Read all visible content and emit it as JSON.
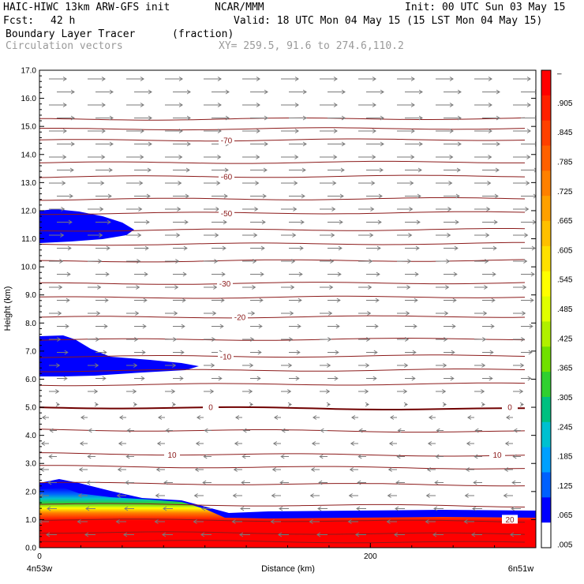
{
  "header": {
    "model": "HAIC-HIWC 13km ARW-GFS init",
    "org": "NCAR/MMM",
    "init": "Init: 00 UTC Sun 03 May 15",
    "fcst_label": "Fcst:",
    "fcst_value": "42 h",
    "valid": "Valid: 18 UTC Mon 04 May 15 (15 LST Mon 04 May 15)",
    "field": "Boundary Layer Tracer",
    "field_unit": "(fraction)",
    "vectors": "Circulation vectors",
    "xy": "XY= 259.5, 91.6 to 274.6,110.2"
  },
  "chart_data": {
    "type": "cross-section",
    "title": "Boundary Layer Tracer",
    "ylabel": "Height (km)",
    "xlabel": "Distance (km)",
    "ylim": [
      0,
      17
    ],
    "xlim": [
      0,
      300
    ],
    "yticks": [
      "0.0",
      "1.0",
      "2.0",
      "3.0",
      "4.0",
      "5.0",
      "6.0",
      "7.0",
      "8.0",
      "9.0",
      "10.0",
      "11.0",
      "12.0",
      "13.0",
      "14.0",
      "15.0",
      "16.0",
      "17.0"
    ],
    "xticks": [
      {
        "x": 0,
        "label": "0"
      },
      {
        "x": 200,
        "label": "200"
      }
    ],
    "x_endpoints": {
      "left": "4n53w",
      "right": "6n51w"
    },
    "colorbar": {
      "labels": [
        "–",
        ".905",
        ".845",
        ".785",
        ".725",
        ".665",
        ".605",
        ".545",
        ".485",
        ".425",
        ".365",
        ".305",
        ".245",
        ".185",
        ".125",
        ".065",
        ".005"
      ],
      "colors": [
        "#ff0000",
        "#ff2000",
        "#ff4000",
        "#ff6000",
        "#ff8000",
        "#ffa000",
        "#ffc000",
        "#ffe000",
        "#ffff00",
        "#e0ff00",
        "#b0f000",
        "#70e000",
        "#30d030",
        "#00c080",
        "#00c0d0",
        "#00a0ff",
        "#0060ff",
        "#0000ff",
        "#ffffff"
      ]
    },
    "temperature_contours": [
      {
        "label": "-70",
        "height_km": 14.5
      },
      {
        "label": "-60",
        "height_km": 13.2
      },
      {
        "label": "-50",
        "height_km": 11.9
      },
      {
        "label": "-30",
        "height_km": 9.4
      },
      {
        "label": "-20",
        "height_km": 8.2
      },
      {
        "label": "-10",
        "height_km": 6.8
      },
      {
        "label": "0",
        "height_km": 5.0
      },
      {
        "label": "10",
        "height_km": 3.3
      },
      {
        "label": "20",
        "height_km": 1.0
      }
    ],
    "contour_levels_km": [
      0.25,
      0.55,
      1.0,
      1.55,
      2.3,
      2.9,
      3.35,
      4.2,
      5.0,
      5.8,
      6.3,
      6.8,
      7.4,
      8.2,
      8.9,
      9.4,
      10.2,
      10.8,
      11.3,
      11.9,
      12.4,
      13.2,
      13.7,
      14.5,
      14.9,
      15.25
    ]
  }
}
